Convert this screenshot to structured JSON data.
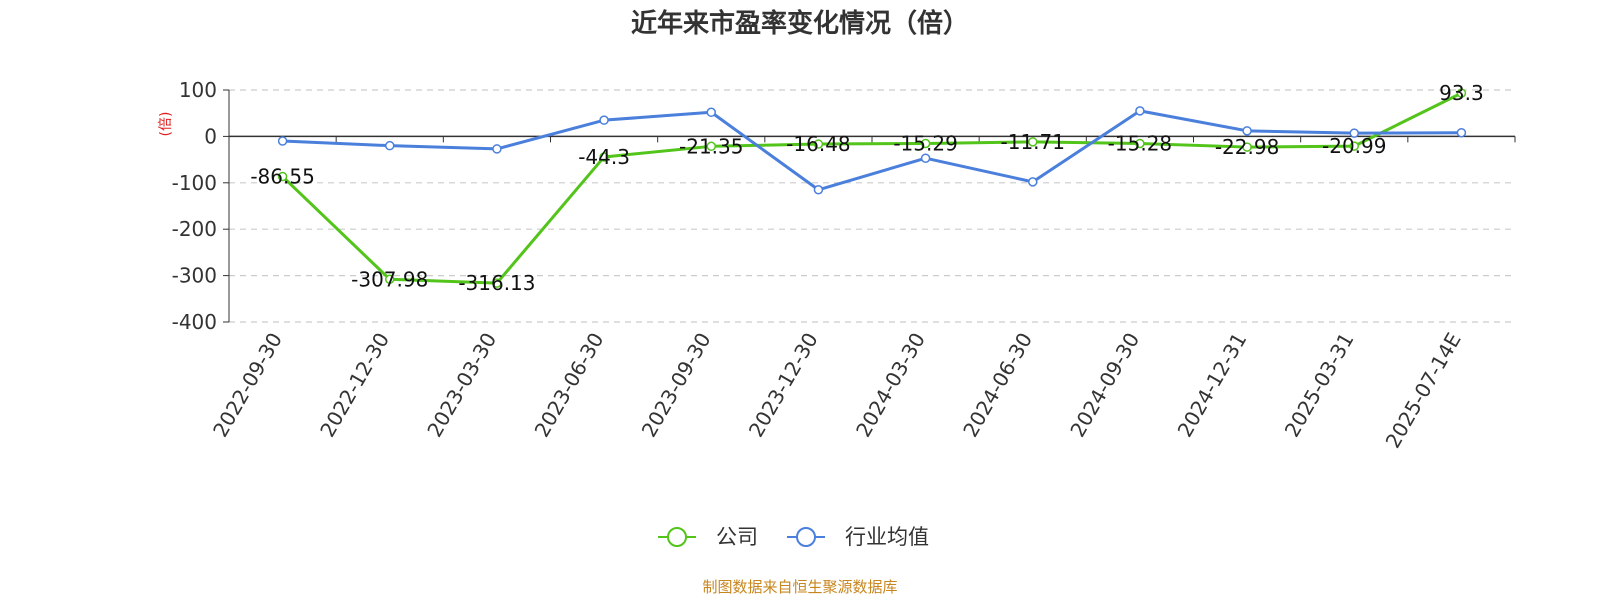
{
  "chart_data": {
    "type": "line",
    "title": "近年来市盈率变化情况（倍）",
    "ylabel": "(倍)",
    "xlabel": "",
    "categories": [
      "2022-09-30",
      "2022-12-30",
      "2023-03-30",
      "2023-06-30",
      "2023-09-30",
      "2023-12-30",
      "2024-03-30",
      "2024-06-30",
      "2024-09-30",
      "2024-12-31",
      "2025-03-31",
      "2025-07-14E"
    ],
    "yticks": [
      "100",
      "0",
      "-100",
      "-200",
      "-300",
      "-400"
    ],
    "ylim": [
      -400,
      100
    ],
    "grid": true,
    "legend_position": "bottom",
    "series": [
      {
        "name": "公司",
        "color": "#52c41a",
        "values": [
          -86.55,
          -307.98,
          -316.13,
          -44.3,
          -21.35,
          -16.48,
          -15.29,
          -11.71,
          -15.28,
          -22.98,
          -20.99,
          93.3
        ],
        "labels": [
          "-86.55",
          "-307.98",
          "-316.13",
          "-44.3",
          "-21.35",
          "-16.48",
          "-15.29",
          "-11.71",
          "-15.28",
          "-22.98",
          "-20.99",
          "93.3"
        ]
      },
      {
        "name": "行业均值",
        "color": "#4a7fdc",
        "values": [
          -10,
          -20,
          -27,
          35,
          52,
          -115,
          -47,
          -98,
          55,
          12,
          7,
          8
        ]
      }
    ]
  },
  "source": "制图数据来自恒生聚源数据库"
}
